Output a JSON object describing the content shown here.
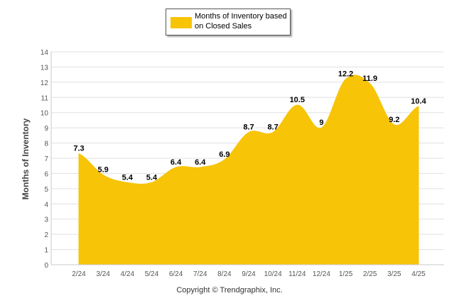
{
  "legend": {
    "label": "Months of Inventory based on Closed Sales"
  },
  "footer": {
    "copyright": "Copyright © Trendgraphix, Inc."
  },
  "colors": {
    "series_fill": "#F7C408",
    "grid": "#e0e0e0",
    "axis_text": "#555555"
  },
  "chart_data": {
    "type": "area",
    "title": "",
    "xlabel": "",
    "ylabel": "Months of Inventory",
    "categories": [
      "2/24",
      "3/24",
      "4/24",
      "5/24",
      "6/24",
      "7/24",
      "8/24",
      "9/24",
      "10/24",
      "11/24",
      "12/24",
      "1/25",
      "2/25",
      "3/25",
      "4/25"
    ],
    "series": [
      {
        "name": "Months of Inventory based on Closed Sales",
        "values": [
          7.3,
          5.9,
          5.4,
          5.4,
          6.4,
          6.4,
          6.9,
          8.7,
          8.7,
          10.5,
          9,
          12.2,
          11.9,
          9.2,
          10.4
        ],
        "labels": [
          "7.3",
          "5.9",
          "5.4",
          "5.4",
          "6.4",
          "6.4",
          "6.9",
          "8.7",
          "8.7",
          "10.5",
          "9",
          "12.2",
          "11.9",
          "9.2",
          "10.4"
        ]
      }
    ],
    "ylim": [
      0,
      14
    ],
    "yticks": [
      "0",
      "1",
      "2",
      "3",
      "4",
      "5",
      "6",
      "7",
      "8",
      "9",
      "10",
      "11",
      "12",
      "13",
      "14"
    ],
    "grid": true,
    "legend_position": "top-center"
  }
}
